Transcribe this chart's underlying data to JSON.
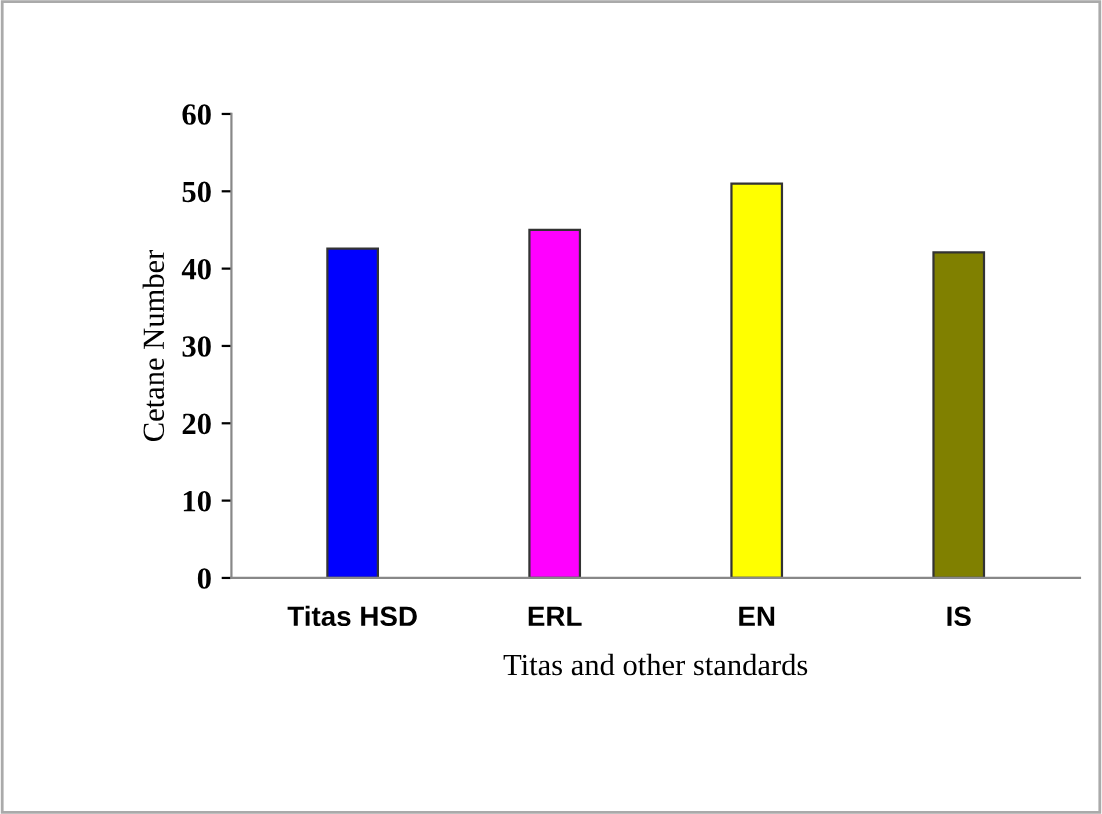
{
  "chart_data": {
    "type": "bar",
    "xlabel": "Titas and other standards",
    "ylabel": "Cetane Number",
    "categories": [
      "Titas HSD",
      "ERL",
      "EN",
      "IS"
    ],
    "values": [
      42.6,
      45,
      51,
      42.1
    ],
    "colors": [
      "#0000ff",
      "#ff00ff",
      "#ffff00",
      "#808000"
    ],
    "ylim": [
      0,
      60
    ],
    "yticks": [
      0,
      10,
      20,
      30,
      40,
      50,
      60
    ],
    "grid": false,
    "legend": false
  }
}
